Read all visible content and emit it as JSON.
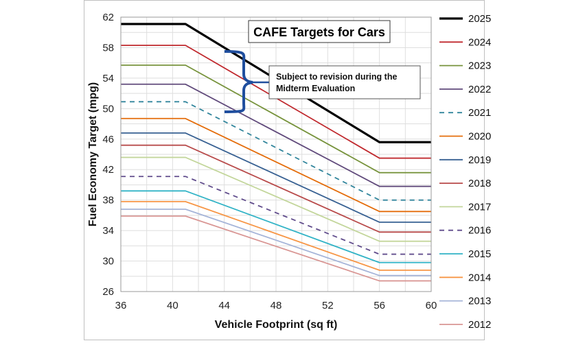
{
  "chart_data": {
    "type": "line",
    "title": "CAFE Targets for Cars",
    "xlabel": "Vehicle Footprint (sq ft)",
    "ylabel": "Fuel Economy Target (mpg)",
    "xlim": [
      36,
      60
    ],
    "ylim": [
      26,
      62
    ],
    "xticks": [
      36,
      40,
      44,
      48,
      52,
      56,
      60
    ],
    "yticks": [
      26,
      30,
      34,
      38,
      42,
      46,
      50,
      54,
      58,
      62
    ],
    "x": [
      36,
      41,
      56,
      60
    ],
    "grid": true,
    "legend_position": "right",
    "annotation": {
      "lines": [
        "Subject to revision during the",
        "Midterm Evaluation"
      ],
      "brace_color": "#1f4e9e"
    },
    "series": [
      {
        "name": "2025",
        "values": [
          61.1,
          61.1,
          45.6,
          45.6
        ],
        "color": "#000000",
        "dash": false,
        "width": 3.2
      },
      {
        "name": "2024",
        "values": [
          58.3,
          58.3,
          43.5,
          43.5
        ],
        "color": "#c0282d",
        "dash": false,
        "width": 1.8
      },
      {
        "name": "2023",
        "values": [
          55.7,
          55.7,
          41.6,
          41.6
        ],
        "color": "#77933c",
        "dash": false,
        "width": 1.8
      },
      {
        "name": "2022",
        "values": [
          53.2,
          53.2,
          39.8,
          39.8
        ],
        "color": "#604a7b",
        "dash": false,
        "width": 1.8
      },
      {
        "name": "2021",
        "values": [
          50.9,
          50.9,
          38.0,
          38.0
        ],
        "color": "#31859c",
        "dash": true,
        "width": 1.8
      },
      {
        "name": "2020",
        "values": [
          48.7,
          48.7,
          36.5,
          36.5
        ],
        "color": "#e46c0a",
        "dash": false,
        "width": 1.8
      },
      {
        "name": "2019",
        "values": [
          46.8,
          46.8,
          35.1,
          35.1
        ],
        "color": "#376092",
        "dash": false,
        "width": 1.8
      },
      {
        "name": "2018",
        "values": [
          45.2,
          45.2,
          33.8,
          33.8
        ],
        "color": "#b84a4a",
        "dash": false,
        "width": 1.8
      },
      {
        "name": "2017",
        "values": [
          43.6,
          43.6,
          32.6,
          32.6
        ],
        "color": "#c3d69b",
        "dash": false,
        "width": 1.8
      },
      {
        "name": "2016",
        "values": [
          41.1,
          41.1,
          30.9,
          30.9
        ],
        "color": "#5f4b8b",
        "dash": true,
        "width": 1.8
      },
      {
        "name": "2015",
        "values": [
          39.2,
          39.2,
          29.8,
          29.8
        ],
        "color": "#31b3c6",
        "dash": false,
        "width": 1.8
      },
      {
        "name": "2014",
        "values": [
          37.8,
          37.8,
          28.8,
          28.8
        ],
        "color": "#f79646",
        "dash": false,
        "width": 1.8
      },
      {
        "name": "2013",
        "values": [
          36.8,
          36.8,
          28.1,
          28.1
        ],
        "color": "#a5b4d8",
        "dash": false,
        "width": 1.8
      },
      {
        "name": "2012",
        "values": [
          35.9,
          35.9,
          27.4,
          27.4
        ],
        "color": "#d99694",
        "dash": false,
        "width": 1.8
      }
    ]
  }
}
